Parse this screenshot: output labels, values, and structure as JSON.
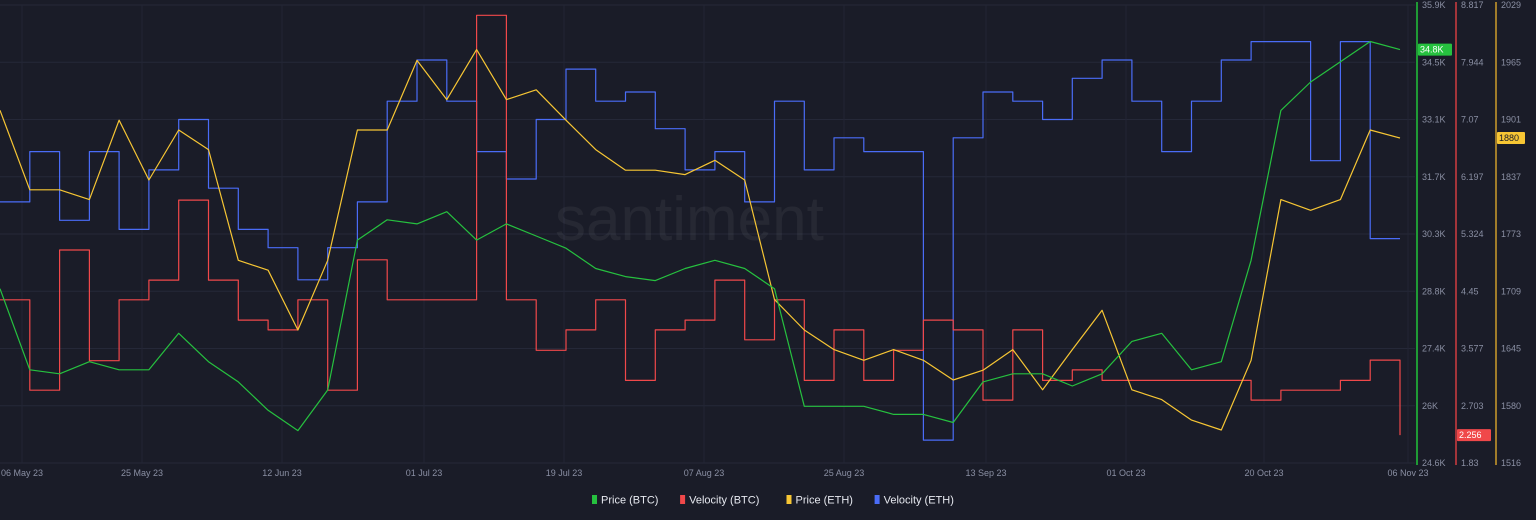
{
  "watermark": "santiment",
  "chart_data": {
    "type": "line",
    "title": "",
    "start_date": "2023-05-05",
    "step_days": 4,
    "x_tick_labels": [
      "06 May 23",
      "25 May 23",
      "12 Jun 23",
      "01 Jul 23",
      "19 Jul 23",
      "07 Aug 23",
      "25 Aug 23",
      "13 Sep 23",
      "01 Oct 23",
      "20 Oct 23",
      "06 Nov 23"
    ],
    "grid": true,
    "legend_position": "bottom-center",
    "series": [
      {
        "name": "Price (BTC)",
        "color": "#26c13f",
        "axis": "btc_price",
        "current_label": "34.8K",
        "values": [
          28.9,
          26.9,
          26.8,
          27.1,
          26.9,
          26.9,
          27.8,
          27.1,
          26.6,
          25.9,
          25.4,
          26.4,
          30.1,
          30.6,
          30.5,
          30.8,
          30.1,
          30.5,
          30.2,
          29.9,
          29.4,
          29.2,
          29.1,
          29.4,
          29.6,
          29.4,
          28.9,
          26.0,
          26.0,
          26.0,
          25.8,
          25.8,
          25.6,
          26.6,
          26.8,
          26.8,
          26.5,
          26.8,
          27.6,
          27.8,
          26.9,
          27.1,
          29.6,
          33.3,
          34.0,
          34.5,
          35.0,
          34.8
        ]
      },
      {
        "name": "Velocity (BTC)",
        "color": "#f0484a",
        "axis": "btc_velocity",
        "current_label": "2.256",
        "values": [
          4.32,
          2.94,
          5.08,
          3.39,
          4.32,
          4.62,
          5.84,
          4.62,
          4.01,
          3.86,
          4.32,
          2.94,
          4.93,
          4.32,
          4.32,
          4.32,
          8.66,
          4.32,
          3.55,
          3.86,
          4.32,
          3.09,
          3.86,
          4.01,
          4.62,
          3.71,
          4.32,
          3.09,
          3.86,
          3.09,
          3.55,
          4.01,
          3.86,
          2.79,
          3.86,
          3.09,
          3.25,
          3.09,
          3.09,
          3.09,
          3.09,
          3.09,
          2.79,
          2.94,
          2.94,
          3.09,
          3.4,
          2.256
        ]
      },
      {
        "name": "Price (ETH)",
        "color": "#f7c634",
        "axis": "eth_price",
        "current_label": "1880",
        "values": [
          1911,
          1822,
          1822,
          1811,
          1900,
          1833,
          1889,
          1867,
          1743,
          1732,
          1665,
          1743,
          1889,
          1889,
          1967,
          1923,
          1979,
          1923,
          1934,
          1900,
          1867,
          1844,
          1844,
          1839,
          1855,
          1833,
          1699,
          1665,
          1643,
          1631,
          1643,
          1631,
          1609,
          1620,
          1643,
          1598,
          1643,
          1687,
          1598,
          1587,
          1564,
          1553,
          1631,
          1811,
          1799,
          1811,
          1889,
          1880
        ]
      },
      {
        "name": "Velocity (ETH)",
        "color": "#4a6cf7",
        "axis": "eth_velocity",
        "values": [
          57,
          68,
          53,
          68,
          51,
          64,
          75,
          60,
          51,
          47,
          40,
          47,
          57,
          79,
          88,
          79,
          68,
          62,
          75,
          86,
          79,
          81,
          73,
          64,
          68,
          57,
          79,
          64,
          71,
          68,
          68,
          5,
          71,
          81,
          79,
          75,
          84,
          88,
          79,
          68,
          79,
          88,
          92,
          92,
          66,
          92,
          49,
          49
        ]
      }
    ],
    "axes": {
      "btc_price": {
        "color": "#1f9a35",
        "range": [
          24.6,
          35.9
        ],
        "tick_labels": [
          "35.9K",
          "34.5K",
          "33.1K",
          "31.7K",
          "30.3K",
          "28.8K",
          "27.4K",
          "26K",
          "24.6K"
        ]
      },
      "btc_velocity": {
        "color": "#a3343a",
        "range": [
          1.83,
          8.817
        ],
        "tick_labels": [
          "8.817",
          "7.944",
          "7.07",
          "6.197",
          "5.324",
          "4.45",
          "3.577",
          "2.703",
          "1.83"
        ]
      },
      "eth_price": {
        "color": "#a07c2a",
        "range": [
          1516,
          2029
        ],
        "tick_labels": [
          "2029",
          "1965",
          "1901",
          "1837",
          "1773",
          "1709",
          "1645",
          "1580",
          "1516"
        ]
      },
      "eth_velocity": {
        "range": [
          0,
          100
        ],
        "hidden": true
      }
    }
  }
}
